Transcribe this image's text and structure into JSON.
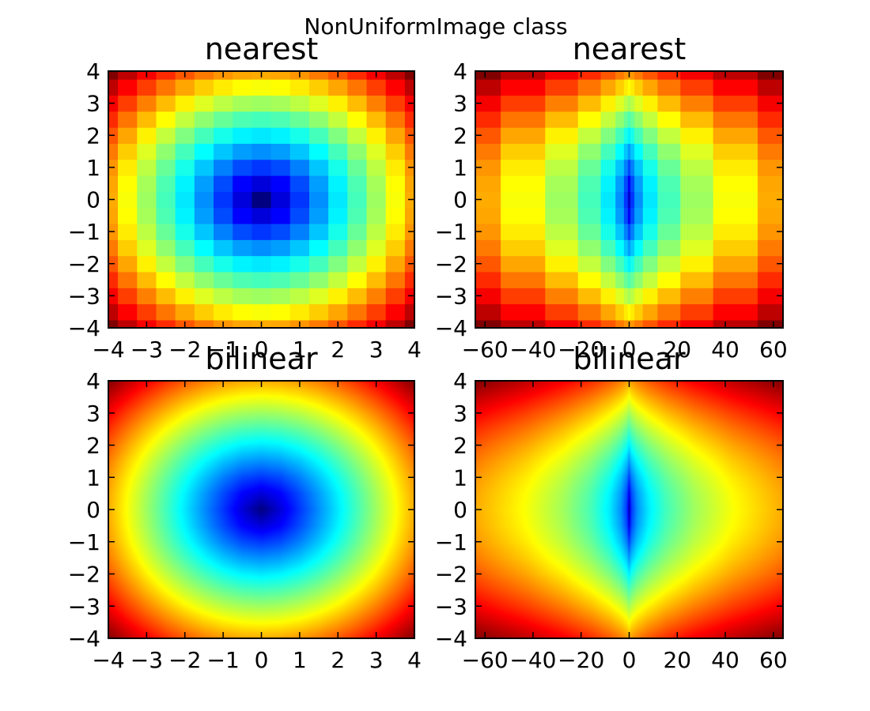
{
  "figure_title": "NonUniformImage class",
  "chart_data": [
    {
      "type": "heatmap",
      "title": "nearest",
      "interpolation": "nearest",
      "colormap": "jet",
      "x": [
        -4,
        -3.5,
        -3,
        -2.5,
        -2,
        -1.5,
        -1,
        -0.5,
        0,
        0.5,
        1,
        1.5,
        2,
        2.5,
        3,
        3.5,
        4
      ],
      "y": [
        -4,
        -3.5,
        -3,
        -2.5,
        -2,
        -1.5,
        -1,
        -0.5,
        0,
        0.5,
        1,
        1.5,
        2,
        2.5,
        3,
        3.5,
        4
      ],
      "z": "sqrt(x_lin^2 + y^2)",
      "xlim": [
        -4,
        4
      ],
      "ylim": [
        -4,
        4
      ],
      "xticks": [
        "−4",
        "−3",
        "−2",
        "−1",
        "0",
        "1",
        "2",
        "3",
        "4"
      ],
      "yticks": [
        "−4",
        "−3",
        "−2",
        "−1",
        "0",
        "1",
        "2",
        "3",
        "4"
      ]
    },
    {
      "type": "heatmap",
      "title": "nearest",
      "interpolation": "nearest",
      "colormap": "jet",
      "x": [
        -64,
        -42.875,
        -27,
        -15.625,
        -8,
        -3.375,
        -1,
        -0.125,
        0,
        0.125,
        1,
        3.375,
        8,
        15.625,
        27,
        42.875,
        64
      ],
      "y": [
        -4,
        -3.5,
        -3,
        -2.5,
        -2,
        -1.5,
        -1,
        -0.5,
        0,
        0.5,
        1,
        1.5,
        2,
        2.5,
        3,
        3.5,
        4
      ],
      "z": "sqrt(x_lin^2 + y^2)",
      "xlim": [
        -64,
        64
      ],
      "ylim": [
        -4,
        4
      ],
      "xticks": [
        "−60",
        "−40",
        "−20",
        "0",
        "20",
        "40",
        "60"
      ],
      "yticks": [
        "−4",
        "−3",
        "−2",
        "−1",
        "0",
        "1",
        "2",
        "3",
        "4"
      ]
    },
    {
      "type": "heatmap",
      "title": "bilinear",
      "interpolation": "bilinear",
      "colormap": "jet",
      "x": [
        -4,
        -3.5,
        -3,
        -2.5,
        -2,
        -1.5,
        -1,
        -0.5,
        0,
        0.5,
        1,
        1.5,
        2,
        2.5,
        3,
        3.5,
        4
      ],
      "y": [
        -4,
        -3.5,
        -3,
        -2.5,
        -2,
        -1.5,
        -1,
        -0.5,
        0,
        0.5,
        1,
        1.5,
        2,
        2.5,
        3,
        3.5,
        4
      ],
      "z": "sqrt(x_lin^2 + y^2)",
      "xlim": [
        -4,
        4
      ],
      "ylim": [
        -4,
        4
      ],
      "xticks": [
        "−4",
        "−3",
        "−2",
        "−1",
        "0",
        "1",
        "2",
        "3",
        "4"
      ],
      "yticks": [
        "−4",
        "−3",
        "−2",
        "−1",
        "0",
        "1",
        "2",
        "3",
        "4"
      ]
    },
    {
      "type": "heatmap",
      "title": "bilinear",
      "interpolation": "bilinear",
      "colormap": "jet",
      "x": [
        -64,
        -42.875,
        -27,
        -15.625,
        -8,
        -3.375,
        -1,
        -0.125,
        0,
        0.125,
        1,
        3.375,
        8,
        15.625,
        27,
        42.875,
        64
      ],
      "y": [
        -4,
        -3.5,
        -3,
        -2.5,
        -2,
        -1.5,
        -1,
        -0.5,
        0,
        0.5,
        1,
        1.5,
        2,
        2.5,
        3,
        3.5,
        4
      ],
      "z": "sqrt(x_lin^2 + y^2)",
      "xlim": [
        -64,
        64
      ],
      "ylim": [
        -4,
        4
      ],
      "xticks": [
        "−60",
        "−40",
        "−20",
        "0",
        "20",
        "40",
        "60"
      ],
      "yticks": [
        "−4",
        "−3",
        "−2",
        "−1",
        "0",
        "1",
        "2",
        "3",
        "4"
      ]
    }
  ]
}
